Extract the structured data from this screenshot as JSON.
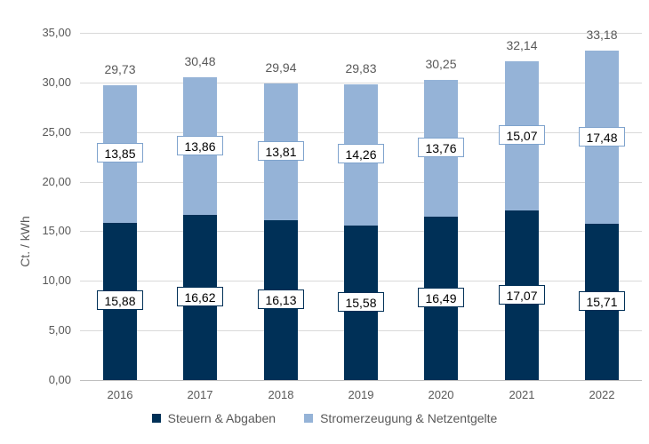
{
  "chart_data": {
    "type": "bar",
    "stacked": true,
    "title": "",
    "xlabel": "",
    "ylabel": "Ct. / kWh",
    "ylim": [
      0,
      35
    ],
    "grid": true,
    "legend_position": "bottom",
    "categories": [
      "2016",
      "2017",
      "2018",
      "2019",
      "2020",
      "2021",
      "2022"
    ],
    "series": [
      {
        "name": "Steuern & Abgaben",
        "color": "#003057",
        "values": [
          15.88,
          16.62,
          16.13,
          15.58,
          16.49,
          17.07,
          15.71
        ],
        "labels": [
          "15,88",
          "16,62",
          "16,13",
          "15,58",
          "16,49",
          "17,07",
          "15,71"
        ]
      },
      {
        "name": "Stromerzeugung & Netzentgelte",
        "color": "#95B3D7",
        "values": [
          13.85,
          13.86,
          13.81,
          14.26,
          13.76,
          15.07,
          17.48
        ],
        "labels": [
          "13,85",
          "13,86",
          "13,81",
          "14,26",
          "13,76",
          "15,07",
          "17,48"
        ]
      }
    ],
    "totals": {
      "values": [
        29.73,
        30.48,
        29.94,
        29.83,
        30.25,
        32.14,
        33.18
      ],
      "labels": [
        "29,73",
        "30,48",
        "29,94",
        "29,83",
        "30,25",
        "32,14",
        "33,18"
      ]
    },
    "yticks": [
      {
        "value": 0,
        "label": "0,00"
      },
      {
        "value": 5,
        "label": "5,00"
      },
      {
        "value": 10,
        "label": "10,00"
      },
      {
        "value": 15,
        "label": "15,00"
      },
      {
        "value": 20,
        "label": "20,00"
      },
      {
        "value": 25,
        "label": "25,00"
      },
      {
        "value": 30,
        "label": "30,00"
      },
      {
        "value": 35,
        "label": "35,00"
      }
    ]
  },
  "colors": {
    "gridline": "#D9D9D9",
    "axis_line": "#BFBFBF",
    "text_gray": "#595959",
    "value_text": "#000000",
    "background": "#FFFFFF"
  }
}
